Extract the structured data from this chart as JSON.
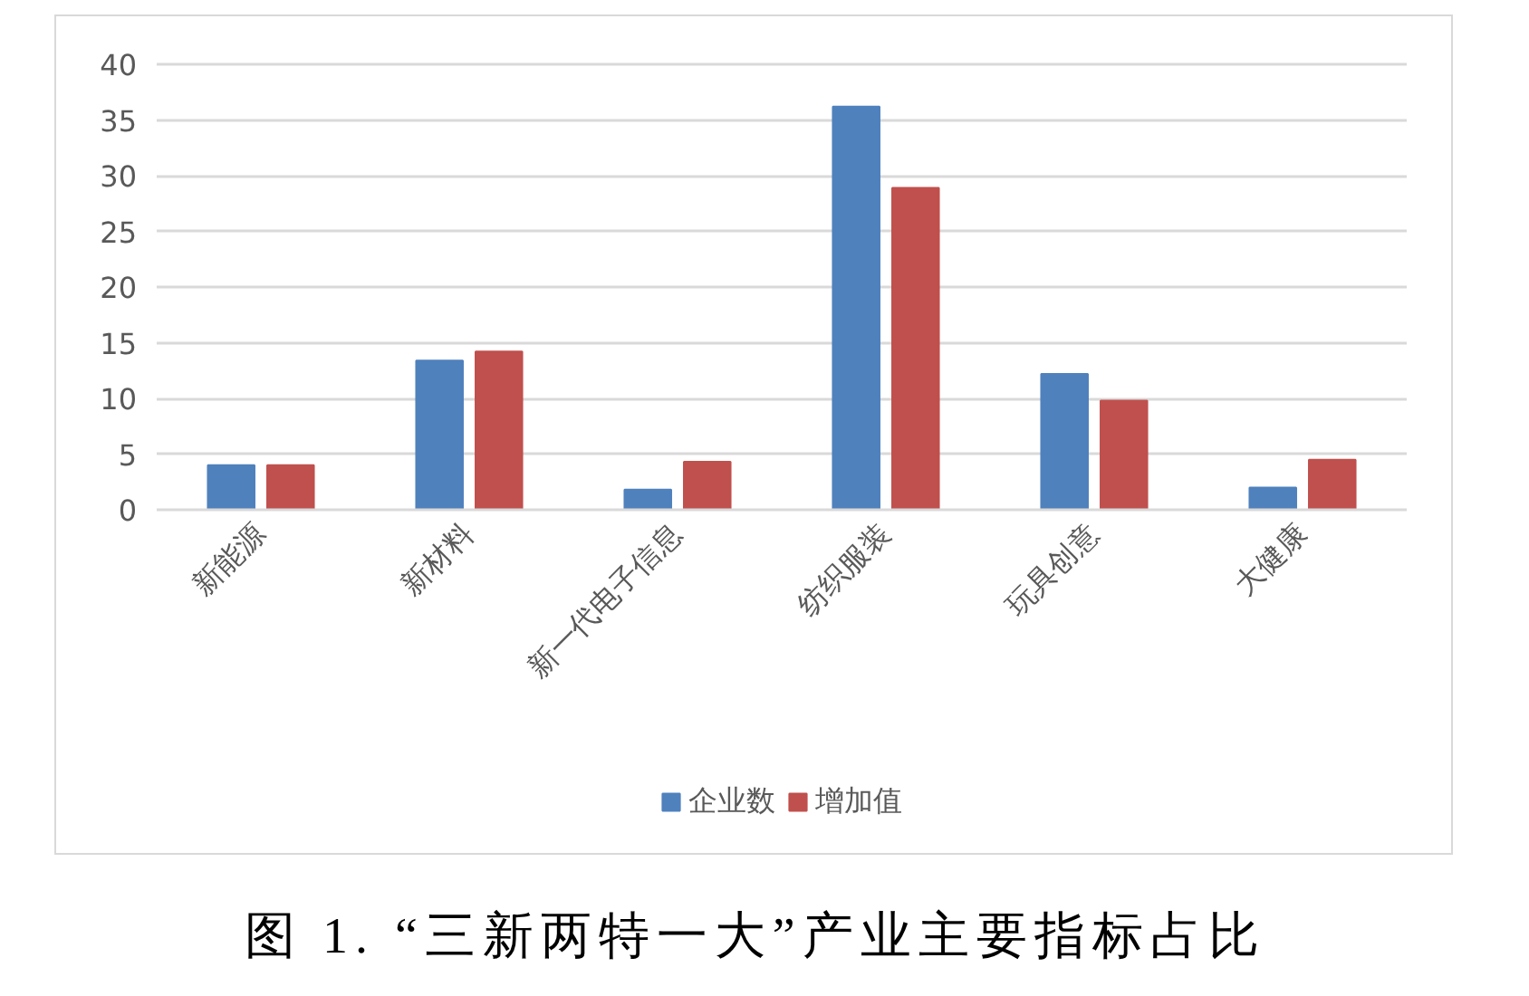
{
  "chart_data": {
    "type": "bar",
    "title": "图 1. “三新两特一大”产业主要指标占比",
    "categories": [
      "新能源",
      "新材料",
      "新一代电子信息",
      "纺织服装",
      "玩具创意",
      "大健康"
    ],
    "series": [
      {
        "name": "企业数",
        "color": "#4f81bd",
        "values": [
          4.0,
          13.4,
          1.8,
          36.2,
          12.2,
          2.0
        ]
      },
      {
        "name": "增加值",
        "color": "#c0504d",
        "values": [
          4.0,
          14.2,
          4.3,
          28.9,
          9.8,
          4.5
        ]
      }
    ],
    "ylim": [
      0,
      40
    ],
    "yticks": [
      0,
      5,
      10,
      15,
      20,
      25,
      30,
      35,
      40
    ],
    "grid": "y",
    "legend": "bottom"
  }
}
